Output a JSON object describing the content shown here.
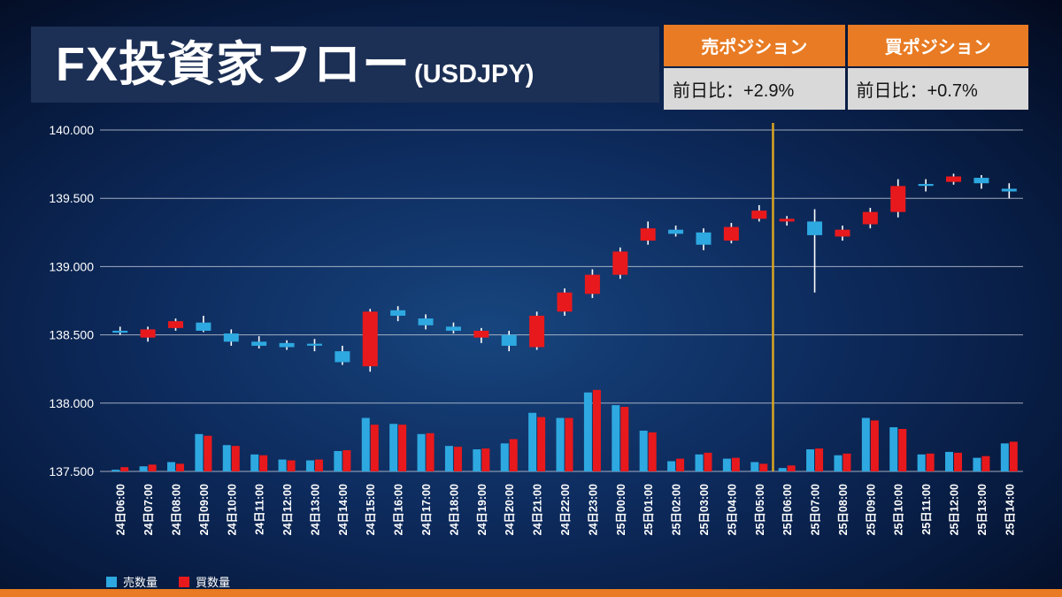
{
  "header": {
    "title_main": "FX投資家フロー",
    "title_sub": "(USDJPY)"
  },
  "position_tables": [
    {
      "header": "売ポジション",
      "value": "前日比：+2.9%"
    },
    {
      "header": "買ポジション",
      "value": "前日比：+0.7%"
    }
  ],
  "legend": [
    {
      "label": "売数量",
      "color": "#2EA8E0"
    },
    {
      "label": "買数量",
      "color": "#E8191C"
    }
  ],
  "colors": {
    "accent_orange": "#E87B23",
    "title_bg": "#1C2F55",
    "table_value_bg": "#D9D9D9",
    "up_red": "#E8191C",
    "down_blue": "#2EA8E0",
    "wick": "#FFFFFF",
    "grid": "#C7CEDA",
    "marker_line": "#D9A521",
    "axis_text": "#FFFFFF"
  },
  "chart_data": {
    "type": "candlestick",
    "title": "FX投資家フロー(USDJPY)",
    "ylim": [
      137.5,
      140.0
    ],
    "grid": true,
    "y_ticks": [
      {
        "value": 140.0,
        "label": "140.000"
      },
      {
        "value": 139.5,
        "label": "139.500"
      },
      {
        "value": 139.0,
        "label": "139.000"
      },
      {
        "value": 138.5,
        "label": "138.500"
      },
      {
        "value": 138.0,
        "label": "138.000"
      },
      {
        "value": 137.5,
        "label": "137.500"
      }
    ],
    "categories": [
      "24日06:00",
      "24日07:00",
      "24日08:00",
      "24日09:00",
      "24日10:00",
      "24日11:00",
      "24日12:00",
      "24日13:00",
      "24日14:00",
      "24日15:00",
      "24日16:00",
      "24日17:00",
      "24日18:00",
      "24日19:00",
      "24日20:00",
      "24日21:00",
      "24日22:00",
      "24日23:00",
      "25日00:00",
      "25日01:00",
      "25日02:00",
      "25日03:00",
      "25日04:00",
      "25日05:00",
      "25日06:00",
      "25日07:00",
      "25日08:00",
      "25日09:00",
      "25日10:00",
      "25日11:00",
      "25日12:00",
      "25日13:00",
      "25日14:00"
    ],
    "ohlc": [
      [
        138.53,
        138.56,
        138.5,
        138.52
      ],
      [
        138.48,
        138.56,
        138.45,
        138.54
      ],
      [
        138.55,
        138.62,
        138.53,
        138.6
      ],
      [
        138.59,
        138.64,
        138.52,
        138.53
      ],
      [
        138.51,
        138.54,
        138.42,
        138.45
      ],
      [
        138.45,
        138.49,
        138.4,
        138.42
      ],
      [
        138.44,
        138.46,
        138.39,
        138.41
      ],
      [
        138.435,
        138.47,
        138.38,
        138.43
      ],
      [
        138.38,
        138.42,
        138.28,
        138.3
      ],
      [
        138.27,
        138.69,
        138.23,
        138.67
      ],
      [
        138.68,
        138.71,
        138.6,
        138.64
      ],
      [
        138.62,
        138.65,
        138.54,
        138.57
      ],
      [
        138.56,
        138.59,
        138.51,
        138.53
      ],
      [
        138.48,
        138.55,
        138.44,
        138.53
      ],
      [
        138.5,
        138.53,
        138.38,
        138.42
      ],
      [
        138.41,
        138.67,
        138.39,
        138.64
      ],
      [
        138.67,
        138.84,
        138.64,
        138.81
      ],
      [
        138.8,
        138.98,
        138.77,
        138.94
      ],
      [
        138.94,
        139.14,
        138.91,
        139.11
      ],
      [
        139.19,
        139.33,
        139.16,
        139.28
      ],
      [
        139.27,
        139.3,
        139.22,
        139.24
      ],
      [
        139.25,
        139.28,
        139.12,
        139.16
      ],
      [
        139.19,
        139.32,
        139.17,
        139.29
      ],
      [
        139.35,
        139.45,
        139.33,
        139.41
      ],
      [
        139.33,
        139.37,
        139.3,
        139.35
      ],
      [
        139.33,
        139.42,
        138.81,
        139.23
      ],
      [
        139.22,
        139.3,
        139.19,
        139.27
      ],
      [
        139.31,
        139.43,
        139.28,
        139.4
      ],
      [
        139.4,
        139.64,
        139.36,
        139.59
      ],
      [
        139.605,
        139.64,
        139.55,
        139.6
      ],
      [
        139.62,
        139.68,
        139.6,
        139.66
      ],
      [
        139.65,
        139.67,
        139.57,
        139.61
      ],
      [
        139.57,
        139.61,
        139.5,
        139.55
      ]
    ],
    "volume_sell": [
      2,
      6,
      11,
      44,
      31,
      20,
      14,
      13,
      24,
      63,
      56,
      44,
      30,
      26,
      33,
      69,
      63,
      93,
      78,
      48,
      12,
      20,
      15,
      11,
      4,
      26,
      19,
      63,
      52,
      20,
      23,
      16,
      33
    ],
    "volume_buy": [
      5,
      8,
      9,
      42,
      30,
      19,
      13,
      14,
      25,
      55,
      55,
      45,
      29,
      27,
      38,
      64,
      63,
      96,
      76,
      46,
      15,
      22,
      16,
      9,
      7,
      27,
      21,
      60,
      50,
      21,
      22,
      18,
      35
    ],
    "marker_index": 24,
    "marker_category": "25日06:00",
    "legend_position": "bottom-left",
    "series_legend": [
      "売数量",
      "買数量"
    ]
  }
}
